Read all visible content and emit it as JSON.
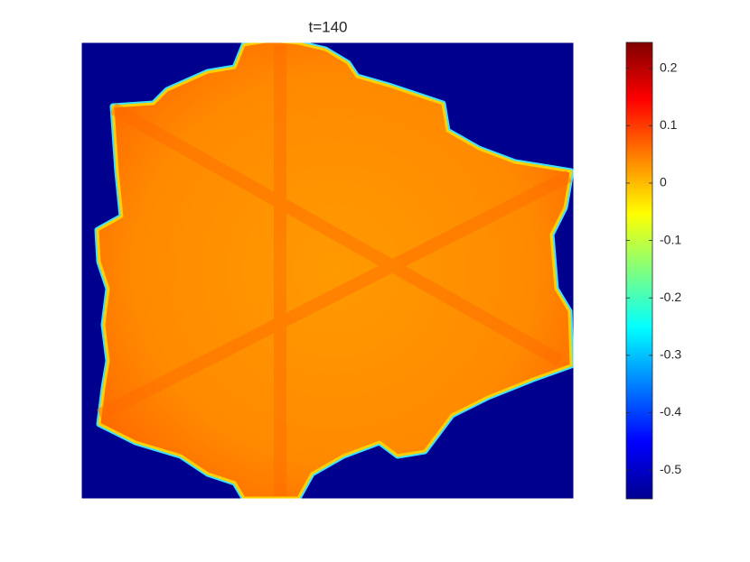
{
  "chart_data": {
    "type": "heatmap",
    "title": "t=140",
    "colormap": "jet",
    "clim": [
      -0.55,
      0.245
    ],
    "cticks": [
      0.2,
      0.1,
      0,
      -0.1,
      -0.2,
      -0.3,
      -0.4,
      -0.5
    ]
  }
}
